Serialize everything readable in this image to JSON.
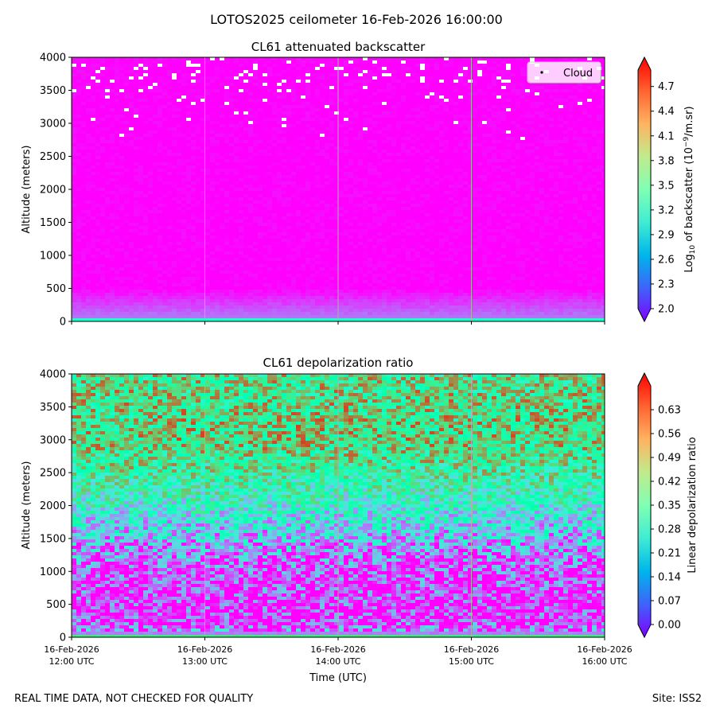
{
  "figure": {
    "suptitle": "LOTOS2025 ceilometer 16-Feb-2026 16:00:00",
    "footer_left": "REAL TIME DATA, NOT CHECKED FOR QUALITY",
    "footer_right": "Site: ISS2"
  },
  "chart_data": [
    {
      "type": "heatmap",
      "title": "CL61 attenuated backscatter",
      "ylabel": "Altitude (meters)",
      "xlabel": "",
      "ylim": [
        0,
        4000
      ],
      "yticks": [
        "0",
        "500",
        "1000",
        "1500",
        "2000",
        "2500",
        "3000",
        "3500",
        "4000"
      ],
      "xticks_visible": false,
      "grid": "vertical",
      "legend": {
        "entries": [
          "Cloud"
        ],
        "placement": "top-right"
      },
      "colorbar": {
        "label_prefix": "Log",
        "label_sub": "10",
        "label_mid": " of backscatter (10",
        "label_sup": "−9",
        "label_suffix": "/m.sr)",
        "range": [
          2.0,
          4.9
        ],
        "ticks": [
          "2.0",
          "2.3",
          "2.6",
          "2.9",
          "3.2",
          "3.5",
          "3.8",
          "4.1",
          "4.4",
          "4.7"
        ],
        "colormap": "rainbow",
        "extend": "both"
      },
      "profile": [
        {
          "altitude": 0,
          "value": 3.9
        },
        {
          "altitude": 50,
          "value": 2.45
        },
        {
          "altitude": 300,
          "value": 2.2
        },
        {
          "altitude": 500,
          "value": 2.0
        },
        {
          "altitude": 4000,
          "value": 2.0
        }
      ]
    },
    {
      "type": "heatmap",
      "title": "CL61 depolarization ratio",
      "ylabel": "Altitude (meters)",
      "xlabel": "Time (UTC)",
      "ylim": [
        0,
        4000
      ],
      "yticks": [
        "0",
        "500",
        "1000",
        "1500",
        "2000",
        "2500",
        "3000",
        "3500",
        "4000"
      ],
      "xticks": [
        {
          "date": "16-Feb-2026",
          "time": "12:00 UTC"
        },
        {
          "date": "16-Feb-2026",
          "time": "13:00 UTC"
        },
        {
          "date": "16-Feb-2026",
          "time": "14:00 UTC"
        },
        {
          "date": "16-Feb-2026",
          "time": "15:00 UTC"
        },
        {
          "date": "16-Feb-2026",
          "time": "16:00 UTC"
        }
      ],
      "grid": "vertical",
      "colorbar": {
        "label": "Linear depolarization ratio",
        "range": [
          0.0,
          0.7
        ],
        "ticks": [
          "0.00",
          "0.07",
          "0.14",
          "0.21",
          "0.28",
          "0.35",
          "0.42",
          "0.49",
          "0.56",
          "0.63"
        ],
        "colormap": "rainbow",
        "extend": "both"
      },
      "profile": [
        {
          "altitude": 0,
          "value": 0.68
        },
        {
          "altitude": 60,
          "value": 0.12
        },
        {
          "altitude": 300,
          "value": 0.03
        },
        {
          "altitude": 1000,
          "value": 0.06
        },
        {
          "altitude": 1500,
          "value": 0.17
        },
        {
          "altitude": 2000,
          "value": 0.3
        },
        {
          "altitude": 2500,
          "value": 0.4
        },
        {
          "altitude": 3000,
          "value": 0.48
        },
        {
          "altitude": 4000,
          "value": 0.45
        }
      ]
    }
  ]
}
